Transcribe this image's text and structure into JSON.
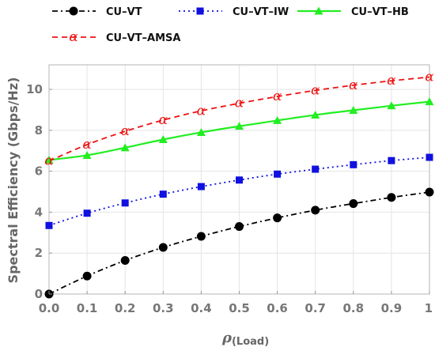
{
  "chart_data": {
    "type": "line",
    "title": "",
    "xlabel": "ρ(Load)",
    "xlabel_main": "ρ",
    "xlabel_sub": "(Load)",
    "ylabel": "Spectral Efficiency (Gbps/Hz)",
    "xlim": [
      0,
      1
    ],
    "ylim": [
      0,
      11.2
    ],
    "x_ticks": [
      0.0,
      0.1,
      0.2,
      0.3,
      0.4,
      0.5,
      0.6,
      0.7,
      0.8,
      0.9,
      1.0
    ],
    "x_tick_labels": [
      "0.0",
      "0.1",
      "0.2",
      "0.3",
      "0.4",
      "0.5",
      "0.6",
      "0.7",
      "0.8",
      "0.9",
      "1"
    ],
    "y_ticks": [
      0,
      2,
      4,
      6,
      8,
      10
    ],
    "y_tick_labels": [
      "0",
      "2",
      "4",
      "6",
      "8",
      "10"
    ],
    "grid": true,
    "legend_position": "top",
    "x": [
      0.0,
      0.1,
      0.2,
      0.3,
      0.4,
      0.5,
      0.6,
      0.7,
      0.8,
      0.9,
      1.0
    ],
    "series": [
      {
        "name": "CU–VT",
        "values": [
          0.0,
          0.88,
          1.64,
          2.28,
          2.82,
          3.3,
          3.72,
          4.1,
          4.42,
          4.72,
          4.98
        ],
        "color": "#000000",
        "line_style": "dash-dot",
        "marker": "circle"
      },
      {
        "name": "CU–VT–IW",
        "values": [
          3.35,
          3.95,
          4.45,
          4.88,
          5.25,
          5.57,
          5.86,
          6.1,
          6.32,
          6.52,
          6.68
        ],
        "color": "#1010e0",
        "line_style": "dotted",
        "marker": "square"
      },
      {
        "name": "CU–VT–HB",
        "values": [
          6.55,
          6.78,
          7.15,
          7.55,
          7.9,
          8.2,
          8.48,
          8.75,
          8.98,
          9.2,
          9.4
        ],
        "color": "#22ee22",
        "line_style": "solid",
        "marker": "triangle"
      },
      {
        "name": "CU–VT–AMSA",
        "values": [
          6.5,
          7.3,
          7.95,
          8.5,
          8.95,
          9.32,
          9.65,
          9.95,
          10.2,
          10.42,
          10.6
        ],
        "color": "#ee1111",
        "line_style": "dashed",
        "marker": "alpha",
        "marker_glyph": "α"
      }
    ]
  }
}
